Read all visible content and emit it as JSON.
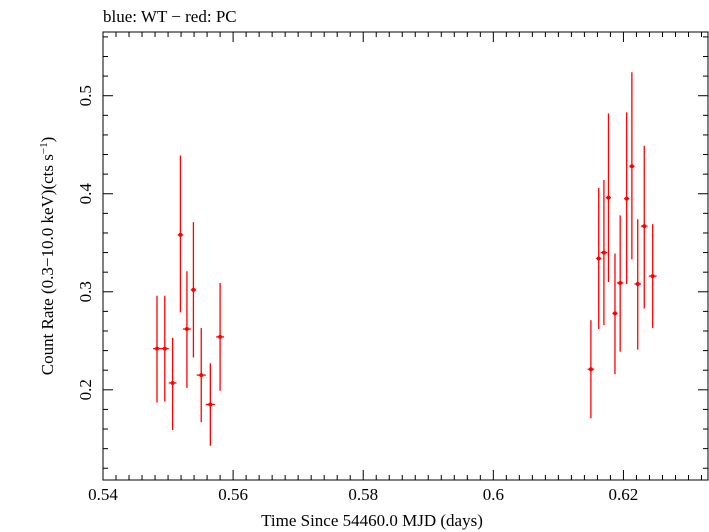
{
  "chart_data": {
    "type": "scatter",
    "title": "blue: WT − red: PC",
    "xlabel": "Time Since 54460.0 MJD (days)",
    "ylabel_main": "Count Rate (0.3−10.0 keV)(cts s",
    "ylabel_sup": "−1",
    "ylabel_close": ")",
    "xlim": [
      0.54,
      0.633
    ],
    "ylim": [
      0.108,
      0.565
    ],
    "x_major_ticks": [
      0.54,
      0.56,
      0.58,
      0.6,
      0.62
    ],
    "x_tick_labels": [
      "0.54",
      "0.56",
      "0.58",
      "0.6",
      "0.62"
    ],
    "y_major_ticks": [
      0.2,
      0.3,
      0.4,
      0.5
    ],
    "y_tick_labels": [
      "0.2",
      "0.3",
      "0.4",
      "0.5"
    ],
    "x_minor_step": 0.002,
    "y_minor_step": 0.02,
    "grid": false,
    "series": [
      {
        "name": "PC",
        "color": "#ff0000",
        "points": [
          {
            "x": 0.5483,
            "xerr": 0.0006,
            "y": 0.242,
            "ylo": 0.187,
            "yhi": 0.296
          },
          {
            "x": 0.5495,
            "xerr": 0.0006,
            "y": 0.242,
            "ylo": 0.188,
            "yhi": 0.296
          },
          {
            "x": 0.5507,
            "xerr": 0.0006,
            "y": 0.207,
            "ylo": 0.159,
            "yhi": 0.253
          },
          {
            "x": 0.5519,
            "xerr": 0.0004,
            "y": 0.358,
            "ylo": 0.279,
            "yhi": 0.439
          },
          {
            "x": 0.5529,
            "xerr": 0.0006,
            "y": 0.262,
            "ylo": 0.202,
            "yhi": 0.321
          },
          {
            "x": 0.5539,
            "xerr": 0.0004,
            "y": 0.302,
            "ylo": 0.233,
            "yhi": 0.371
          },
          {
            "x": 0.5551,
            "xerr": 0.0007,
            "y": 0.215,
            "ylo": 0.167,
            "yhi": 0.263
          },
          {
            "x": 0.5565,
            "xerr": 0.0007,
            "y": 0.185,
            "ylo": 0.143,
            "yhi": 0.227
          },
          {
            "x": 0.558,
            "xerr": 0.0006,
            "y": 0.254,
            "ylo": 0.199,
            "yhi": 0.309
          },
          {
            "x": 0.615,
            "xerr": 0.0005,
            "y": 0.221,
            "ylo": 0.171,
            "yhi": 0.271
          },
          {
            "x": 0.6162,
            "xerr": 0.0004,
            "y": 0.334,
            "ylo": 0.262,
            "yhi": 0.406
          },
          {
            "x": 0.617,
            "xerr": 0.0005,
            "y": 0.34,
            "ylo": 0.266,
            "yhi": 0.414
          },
          {
            "x": 0.6177,
            "xerr": 0.0004,
            "y": 0.396,
            "ylo": 0.31,
            "yhi": 0.482
          },
          {
            "x": 0.6187,
            "xerr": 0.0004,
            "y": 0.278,
            "ylo": 0.216,
            "yhi": 0.339
          },
          {
            "x": 0.6195,
            "xerr": 0.0005,
            "y": 0.309,
            "ylo": 0.239,
            "yhi": 0.378
          },
          {
            "x": 0.6205,
            "xerr": 0.0004,
            "y": 0.395,
            "ylo": 0.308,
            "yhi": 0.483
          },
          {
            "x": 0.6213,
            "xerr": 0.0004,
            "y": 0.428,
            "ylo": 0.333,
            "yhi": 0.524
          },
          {
            "x": 0.6222,
            "xerr": 0.0005,
            "y": 0.308,
            "ylo": 0.241,
            "yhi": 0.374
          },
          {
            "x": 0.6232,
            "xerr": 0.0005,
            "y": 0.367,
            "ylo": 0.283,
            "yhi": 0.449
          },
          {
            "x": 0.6245,
            "xerr": 0.0006,
            "y": 0.316,
            "ylo": 0.263,
            "yhi": 0.369
          }
        ]
      }
    ]
  }
}
